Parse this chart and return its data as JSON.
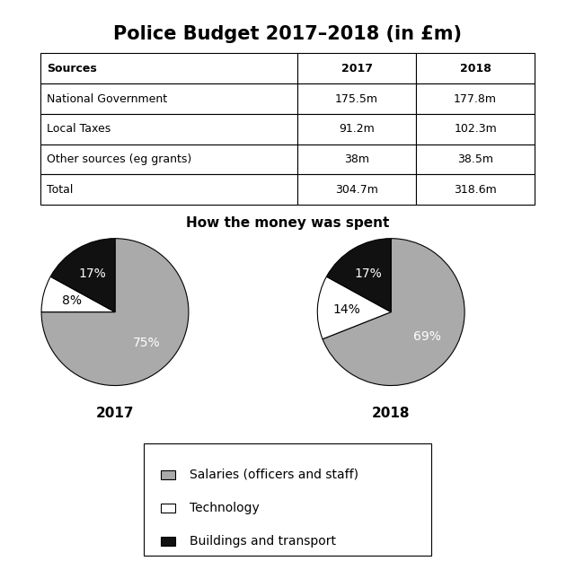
{
  "title": "Police Budget 2017–2018 (in £m)",
  "table": {
    "headers": [
      "Sources",
      "2017",
      "2018"
    ],
    "rows": [
      [
        "National Government",
        "175.5m",
        "177.8m"
      ],
      [
        "Local Taxes",
        "91.2m",
        "102.3m"
      ],
      [
        "Other sources (eg grants)",
        "38m",
        "38.5m"
      ],
      [
        "Total",
        "304.7m",
        "318.6m"
      ]
    ]
  },
  "pie_subtitle": "How the money was spent",
  "pie_2017": {
    "label": "2017",
    "values": [
      75,
      8,
      17
    ],
    "colors": [
      "#aaaaaa",
      "#ffffff",
      "#111111"
    ],
    "labels": [
      "75%",
      "8%",
      "17%"
    ],
    "startangle": 90,
    "label_colors": [
      "white",
      "black",
      "white"
    ]
  },
  "pie_2018": {
    "label": "2018",
    "values": [
      69,
      14,
      17
    ],
    "colors": [
      "#aaaaaa",
      "#ffffff",
      "#111111"
    ],
    "labels": [
      "69%",
      "14%",
      "17%"
    ],
    "startangle": 90,
    "label_colors": [
      "white",
      "black",
      "white"
    ]
  },
  "legend_items": [
    {
      "label": "Salaries (officers and staff)",
      "color": "#aaaaaa"
    },
    {
      "label": "Technology",
      "color": "#ffffff"
    },
    {
      "label": "Buildings and transport",
      "color": "#111111"
    }
  ],
  "background_color": "#ffffff",
  "title_fontsize": 15,
  "table_fontsize": 9,
  "pie_label_fontsize": 10,
  "pie_year_fontsize": 11,
  "subtitle_fontsize": 11,
  "legend_fontsize": 10
}
